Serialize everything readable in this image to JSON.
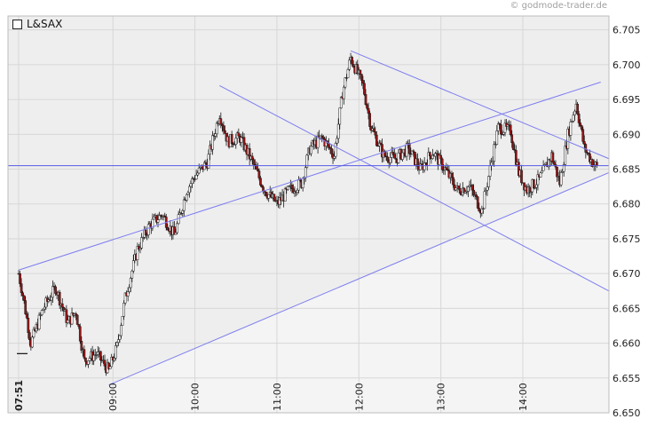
{
  "watermark": "© godmode-trader.de",
  "colors": {
    "plot_bg": "#eeeeee",
    "plot_bg_band": "#f4f4f4",
    "grid": "#d7d7d7",
    "trendline": "#7d7df0",
    "hline": "#5a5ae6",
    "candle_up": "#ffffff",
    "candle_down": "#9b1414",
    "candle_outline": "#1a1a1a"
  },
  "chart_data": {
    "type": "candlestick",
    "legend": [
      {
        "name": "L&SAX",
        "swatch": "open-square"
      }
    ],
    "y_ticks": [
      "6.650",
      "6.655",
      "6.660",
      "6.665",
      "6.670",
      "6.675",
      "6.680",
      "6.685",
      "6.690",
      "6.695",
      "6.700",
      "6.705"
    ],
    "ylim": [
      6.65,
      6.707
    ],
    "x_ticks": [
      "07:51",
      "09:00",
      "10:00",
      "11:00",
      "12:00",
      "13:00",
      "14:00"
    ],
    "x_tick_times": [
      7.85,
      9.0,
      10.0,
      11.0,
      12.0,
      13.0,
      14.0
    ],
    "xlim": [
      7.72,
      15.05
    ],
    "horizontal_lines": [
      6.6855
    ],
    "trendlines": [
      {
        "from": [
          7.85,
          6.6705
        ],
        "to": [
          14.95,
          6.6975
        ]
      },
      {
        "from": [
          8.95,
          6.654
        ],
        "to": [
          15.05,
          6.6845
        ]
      },
      {
        "from": [
          10.3,
          6.697
        ],
        "to": [
          15.05,
          6.6675
        ]
      },
      {
        "from": [
          11.9,
          6.702
        ],
        "to": [
          15.05,
          6.6865
        ]
      }
    ],
    "anchors": [
      [
        7.85,
        6.67
      ],
      [
        7.9,
        6.667
      ],
      [
        8.0,
        6.66
      ],
      [
        8.15,
        6.665
      ],
      [
        8.3,
        6.668
      ],
      [
        8.45,
        6.663
      ],
      [
        8.55,
        6.6645
      ],
      [
        8.65,
        6.6575
      ],
      [
        8.8,
        6.6585
      ],
      [
        8.95,
        6.656
      ],
      [
        9.05,
        6.6595
      ],
      [
        9.15,
        6.6665
      ],
      [
        9.3,
        6.6735
      ],
      [
        9.45,
        6.677
      ],
      [
        9.6,
        6.6785
      ],
      [
        9.75,
        6.6755
      ],
      [
        9.9,
        6.682
      ],
      [
        10.0,
        6.684
      ],
      [
        10.15,
        6.686
      ],
      [
        10.3,
        6.693
      ],
      [
        10.4,
        6.689
      ],
      [
        10.55,
        6.6895
      ],
      [
        10.7,
        6.686
      ],
      [
        10.85,
        6.682
      ],
      [
        11.0,
        6.68
      ],
      [
        11.15,
        6.682
      ],
      [
        11.3,
        6.683
      ],
      [
        11.4,
        6.688
      ],
      [
        11.55,
        6.6895
      ],
      [
        11.7,
        6.687
      ],
      [
        11.8,
        6.696
      ],
      [
        11.9,
        6.701
      ],
      [
        12.05,
        6.697
      ],
      [
        12.15,
        6.691
      ],
      [
        12.3,
        6.687
      ],
      [
        12.45,
        6.6865
      ],
      [
        12.6,
        6.688
      ],
      [
        12.75,
        6.685
      ],
      [
        12.9,
        6.6875
      ],
      [
        13.05,
        6.685
      ],
      [
        13.2,
        6.682
      ],
      [
        13.35,
        6.6825
      ],
      [
        13.5,
        6.679
      ],
      [
        13.6,
        6.685
      ],
      [
        13.7,
        6.691
      ],
      [
        13.85,
        6.6905
      ],
      [
        13.95,
        6.6845
      ],
      [
        14.05,
        6.682
      ],
      [
        14.2,
        6.6835
      ],
      [
        14.35,
        6.687
      ],
      [
        14.45,
        6.683
      ],
      [
        14.55,
        6.69
      ],
      [
        14.65,
        6.6945
      ],
      [
        14.75,
        6.688
      ],
      [
        14.85,
        6.686
      ],
      [
        14.92,
        6.685
      ]
    ]
  }
}
